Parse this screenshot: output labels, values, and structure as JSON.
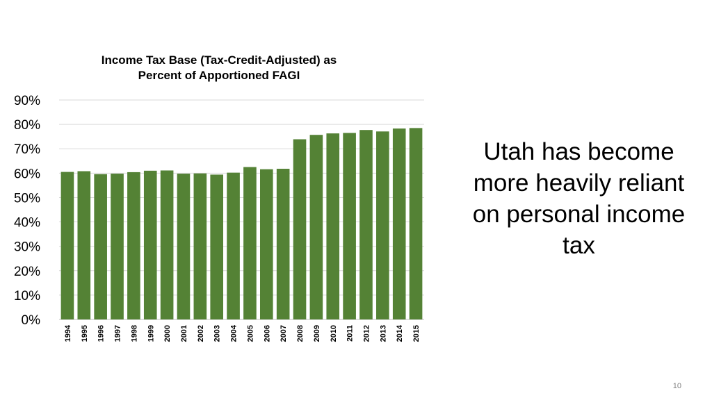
{
  "chart_data": {
    "type": "bar",
    "title": [
      "Income Tax Base (Tax-Credit-Adjusted) as",
      "Percent of Apportioned FAGI"
    ],
    "xlabel": "",
    "ylabel": "",
    "ylim": [
      0,
      90
    ],
    "ytick_values": [
      0,
      10,
      20,
      30,
      40,
      50,
      60,
      70,
      80,
      90
    ],
    "ytick_labels": [
      "0%",
      "10%",
      "20%",
      "30%",
      "40%",
      "50%",
      "60%",
      "70%",
      "80%",
      "90%"
    ],
    "grid": true,
    "legend": "none",
    "bar_color": "#548235",
    "categories": [
      "1994",
      "1995",
      "1996",
      "1997",
      "1998",
      "1999",
      "2000",
      "2001",
      "2002",
      "2003",
      "2004",
      "2005",
      "2006",
      "2007",
      "2008",
      "2009",
      "2010",
      "2011",
      "2012",
      "2013",
      "2014",
      "2015"
    ],
    "values": [
      60.5,
      60.8,
      59.6,
      59.8,
      60.4,
      61.0,
      61.1,
      59.8,
      59.9,
      59.4,
      60.2,
      62.5,
      61.6,
      61.8,
      73.9,
      75.7,
      76.3,
      76.5,
      77.7,
      77.1,
      78.3,
      78.5
    ]
  },
  "callout": {
    "lines": [
      "Utah has become",
      "more heavily reliant",
      "on personal income",
      "tax"
    ]
  },
  "slide_number": "10"
}
